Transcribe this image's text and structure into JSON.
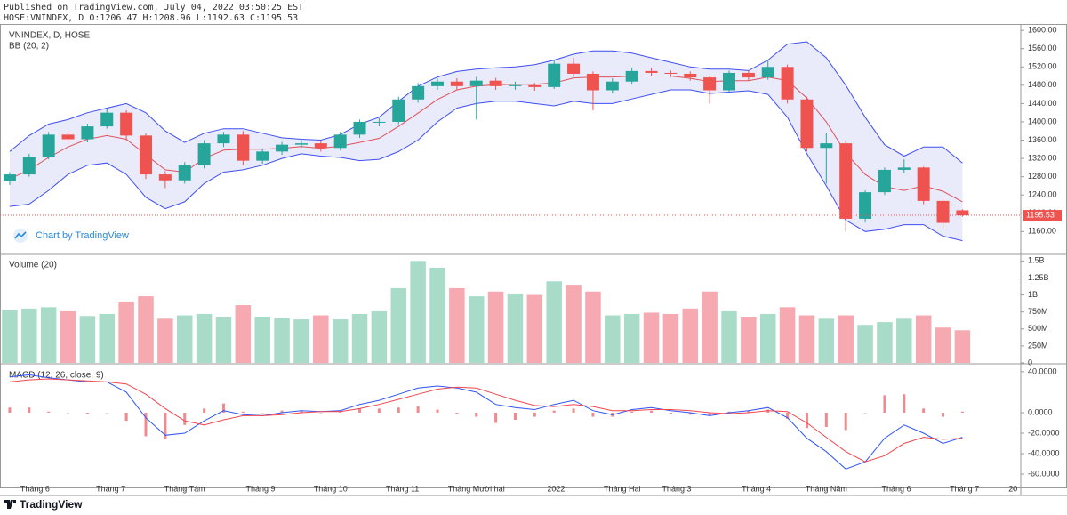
{
  "header": {
    "published": "Published on TradingView.com, July 04, 2022 03:50:25 EST",
    "ohlc": "HOSE:VNINDEX, D O:1206.47 H:1208.96 L:1192.63 C:1195.53",
    "watermark": "Chart by TradingView",
    "brand": "TradingView"
  },
  "chart_data": [
    {
      "type": "candlestick",
      "title": "VNINDEX, D, HOSE",
      "subtitle": "BB (20, 2)",
      "categories": [
        null,
        null,
        null,
        null,
        null,
        null,
        null,
        null,
        null,
        null,
        null,
        null,
        null,
        null,
        null,
        null,
        null,
        null,
        null,
        null,
        null,
        null,
        null,
        null,
        null,
        null,
        null,
        null,
        null,
        null,
        null,
        null,
        null,
        null,
        null,
        null,
        null,
        null,
        null,
        null,
        null,
        null,
        null,
        null,
        null,
        null,
        null,
        null,
        null,
        null
      ],
      "open": [
        1270,
        1285,
        1324,
        1372,
        1362,
        1390,
        1420,
        1370,
        1285,
        1272,
        1305,
        1353,
        1372,
        1315,
        1335,
        1350,
        1353,
        1343,
        1372,
        1400,
        1400,
        1449,
        1478,
        1488,
        1478,
        1490,
        1478,
        1480,
        1476,
        1527,
        1505,
        1469,
        1488,
        1511,
        1507,
        1505,
        1497,
        1469,
        1507,
        1497,
        1520,
        1449,
        1343,
        1353,
        1188,
        1246,
        1295,
        1300,
        1227,
        1206.47
      ],
      "high": [
        1290,
        1330,
        1378,
        1380,
        1396,
        1428,
        1425,
        1375,
        1292,
        1312,
        1360,
        1378,
        1380,
        1342,
        1356,
        1360,
        1358,
        1378,
        1405,
        1408,
        1455,
        1485,
        1495,
        1495,
        1498,
        1496,
        1488,
        1485,
        1535,
        1540,
        1510,
        1495,
        1518,
        1518,
        1512,
        1510,
        1500,
        1512,
        1512,
        1536,
        1525,
        1455,
        1375,
        1360,
        1250,
        1300,
        1318,
        1302,
        1232,
        1208.96
      ],
      "low": [
        1262,
        1280,
        1318,
        1355,
        1355,
        1385,
        1360,
        1275,
        1255,
        1265,
        1298,
        1345,
        1305,
        1308,
        1328,
        1343,
        1335,
        1338,
        1365,
        1390,
        1395,
        1442,
        1470,
        1470,
        1405,
        1470,
        1470,
        1468,
        1472,
        1498,
        1425,
        1462,
        1482,
        1500,
        1498,
        1490,
        1440,
        1465,
        1490,
        1492,
        1440,
        1335,
        1265,
        1160,
        1180,
        1240,
        1288,
        1220,
        1168,
        1192.63
      ],
      "close": [
        1285,
        1324,
        1372,
        1362,
        1390,
        1420,
        1370,
        1285,
        1272,
        1305,
        1353,
        1372,
        1315,
        1335,
        1350,
        1353,
        1343,
        1372,
        1400,
        1400,
        1449,
        1478,
        1488,
        1478,
        1490,
        1478,
        1480,
        1476,
        1527,
        1505,
        1469,
        1488,
        1511,
        1507,
        1505,
        1497,
        1469,
        1507,
        1497,
        1520,
        1449,
        1343,
        1353,
        1188,
        1246,
        1295,
        1300,
        1227,
        1179,
        1195.53
      ],
      "bb_upper": [
        1335,
        1370,
        1395,
        1405,
        1420,
        1430,
        1440,
        1420,
        1380,
        1355,
        1375,
        1385,
        1385,
        1375,
        1365,
        1362,
        1360,
        1372,
        1395,
        1410,
        1445,
        1478,
        1498,
        1510,
        1515,
        1518,
        1520,
        1525,
        1535,
        1548,
        1555,
        1555,
        1550,
        1540,
        1530,
        1520,
        1515,
        1515,
        1512,
        1535,
        1570,
        1575,
        1540,
        1480,
        1410,
        1350,
        1325,
        1345,
        1345,
        1310
      ],
      "bb_basis": [
        1275,
        1295,
        1322,
        1345,
        1362,
        1370,
        1362,
        1328,
        1295,
        1290,
        1320,
        1338,
        1340,
        1340,
        1342,
        1346,
        1342,
        1347,
        1355,
        1364,
        1390,
        1419,
        1449,
        1470,
        1478,
        1481,
        1482,
        1482,
        1485,
        1496,
        1498,
        1498,
        1500,
        1500,
        1500,
        1495,
        1488,
        1490,
        1490,
        1498,
        1490,
        1452,
        1400,
        1332,
        1285,
        1258,
        1250,
        1260,
        1248,
        1225
      ],
      "bb_lower": [
        1215,
        1220,
        1250,
        1285,
        1305,
        1310,
        1285,
        1235,
        1210,
        1225,
        1265,
        1290,
        1295,
        1305,
        1320,
        1330,
        1325,
        1322,
        1315,
        1318,
        1335,
        1360,
        1400,
        1430,
        1440,
        1445,
        1445,
        1440,
        1435,
        1445,
        1440,
        1440,
        1450,
        1460,
        1470,
        1470,
        1462,
        1465,
        1468,
        1460,
        1410,
        1330,
        1260,
        1185,
        1160,
        1165,
        1175,
        1175,
        1150,
        1140
      ],
      "up_color": "#26a69a",
      "down_color": "#ef5350",
      "bb_color": "#3f4ff0",
      "bb_basis_color": "#e0525a",
      "bb_fill": "#2a2fd0",
      "ylim": [
        1112,
        1610
      ],
      "yticks": [
        {
          "value": 1160,
          "label": "1160.00"
        },
        {
          "value": 1200,
          "label": "1200.00"
        },
        {
          "value": 1240,
          "label": "1240.00"
        },
        {
          "value": 1280,
          "label": "1280.00"
        },
        {
          "value": 1320,
          "label": "1320.00"
        },
        {
          "value": 1360,
          "label": "1360.00"
        },
        {
          "value": 1400,
          "label": "1400.00"
        },
        {
          "value": 1440,
          "label": "1440.00"
        },
        {
          "value": 1480,
          "label": "1480.00"
        },
        {
          "value": 1520,
          "label": "1520.00"
        },
        {
          "value": 1560,
          "label": "1560.00"
        },
        {
          "value": 1600,
          "label": "1600.00"
        }
      ]
    },
    {
      "type": "bar",
      "title": "Volume (20)",
      "values": [
        780000000,
        800000000,
        820000000,
        760000000,
        690000000,
        720000000,
        900000000,
        980000000,
        650000000,
        700000000,
        720000000,
        680000000,
        850000000,
        680000000,
        660000000,
        640000000,
        700000000,
        640000000,
        720000000,
        760000000,
        1100000000,
        1500000000,
        1400000000,
        1100000000,
        980000000,
        1050000000,
        1020000000,
        1000000000,
        1200000000,
        1150000000,
        1050000000,
        700000000,
        720000000,
        740000000,
        720000000,
        800000000,
        1050000000,
        760000000,
        680000000,
        720000000,
        820000000,
        700000000,
        650000000,
        700000000,
        560000000,
        600000000,
        650000000,
        700000000,
        520000000,
        480000000
      ],
      "up_color": "#a8dcc8",
      "down_color": "#f6a9b0",
      "ylim": [
        0,
        1570000000
      ],
      "yticks": [
        0,
        {
          "value": 250000000,
          "label": "250M"
        },
        {
          "value": 500000000,
          "label": "500M"
        },
        {
          "value": 750000000,
          "label": "750M"
        },
        {
          "value": 1000000000,
          "label": "1B"
        },
        {
          "value": 1250000000,
          "label": "1.25B"
        },
        {
          "value": 1500000000,
          "label": "1.5B"
        }
      ]
    },
    {
      "type": "macd",
      "title": "MACD (12, 26, close, 9)",
      "macd": [
        35,
        37,
        34,
        32,
        30,
        30,
        20,
        -5,
        -22,
        -20,
        -8,
        2,
        -2,
        -3,
        0,
        2,
        1,
        2,
        8,
        12,
        18,
        24,
        26,
        24,
        20,
        8,
        5,
        3,
        8,
        12,
        2,
        -2,
        3,
        5,
        2,
        0,
        -3,
        0,
        2,
        5,
        -5,
        -25,
        -38,
        -55,
        -48,
        -25,
        -12,
        -20,
        -30,
        -24
      ],
      "signal": [
        30,
        32,
        33,
        32,
        31,
        30,
        28,
        18,
        4,
        -8,
        -12,
        -7,
        -3,
        -3,
        -2,
        0,
        1,
        1,
        4,
        8,
        13,
        18,
        23,
        25,
        24,
        18,
        12,
        7,
        6,
        8,
        6,
        2,
        2,
        3,
        3,
        2,
        0,
        -1,
        0,
        2,
        1,
        -10,
        -24,
        -38,
        -48,
        -42,
        -30,
        -24,
        -26,
        -25
      ],
      "histogram": [
        5,
        5,
        1,
        0,
        -1,
        0,
        -8,
        -23,
        -26,
        -12,
        4,
        9,
        1,
        0,
        2,
        2,
        0,
        1,
        4,
        4,
        5,
        6,
        3,
        -1,
        -4,
        -10,
        -7,
        -4,
        2,
        4,
        -4,
        -4,
        1,
        2,
        -1,
        -2,
        -3,
        1,
        2,
        3,
        -6,
        -15,
        -14,
        -17,
        0,
        17,
        18,
        4,
        -4,
        1
      ],
      "macd_color": "#2f55f5",
      "signal_color": "#f0474f",
      "histogram_color": "#ef8a8f",
      "ylim": [
        -73,
        46
      ],
      "yticks": [
        {
          "value": 40,
          "label": "40.0000"
        },
        {
          "value": 0,
          "label": "0.0000"
        },
        {
          "value": -20,
          "label": "-20.0000"
        },
        {
          "value": -40,
          "label": "-40.0000"
        },
        {
          "value": -60,
          "label": "-60.0000"
        }
      ],
      "xlim": [
        -0.5,
        52
      ],
      "xticks": [
        {
          "value": 1.3,
          "label": "Tháng 6"
        },
        {
          "value": 5.2,
          "label": "Tháng 7"
        },
        {
          "value": 9.0,
          "label": "Tháng Tám"
        },
        {
          "value": 12.9,
          "label": "Tháng 9"
        },
        {
          "value": 16.5,
          "label": "Tháng 10"
        },
        {
          "value": 20.2,
          "label": "Tháng 11"
        },
        {
          "value": 24.0,
          "label": "Tháng Mười hai"
        },
        {
          "value": 28.1,
          "label": "2022"
        },
        {
          "value": 31.5,
          "label": "Tháng Hai"
        },
        {
          "value": 34.3,
          "label": "Tháng 3"
        },
        {
          "value": 38.4,
          "label": "Tháng 4"
        },
        {
          "value": 42.0,
          "label": "Tháng Năm"
        },
        {
          "value": 45.6,
          "label": "Tháng 6"
        },
        {
          "value": 49.1,
          "label": "Tháng 7"
        },
        {
          "value": 51.6,
          "label": "20"
        }
      ]
    }
  ]
}
